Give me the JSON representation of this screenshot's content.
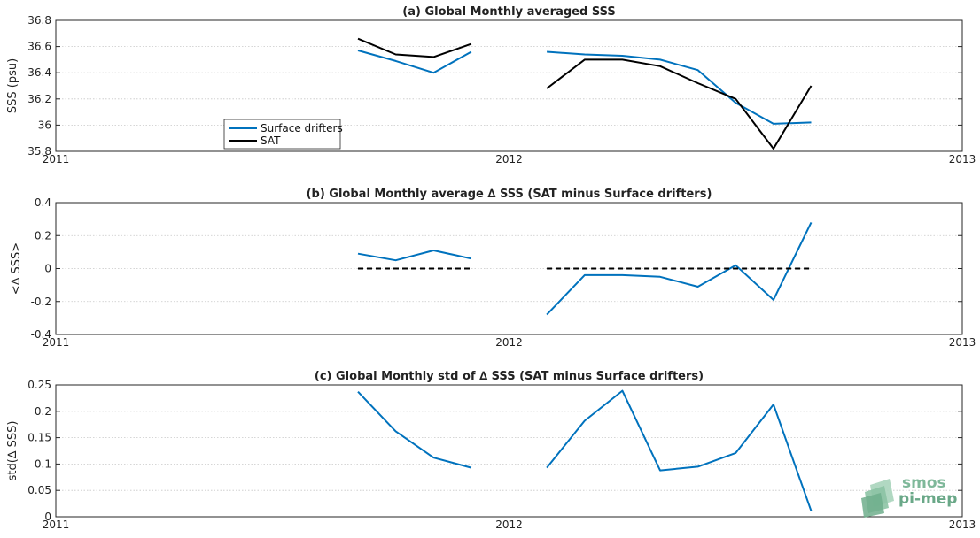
{
  "chart_data": [
    {
      "type": "line",
      "title": "(a) Global Monthly averaged SSS",
      "ylabel": "SSS (psu)",
      "xlabel": "",
      "xlim": [
        "2011",
        "2013"
      ],
      "xticks": [
        "2011",
        "2012",
        "2013"
      ],
      "ylim": [
        35.8,
        36.8
      ],
      "yticks": [
        "35.8",
        "36",
        "36.2",
        "36.4",
        "36.6",
        "36.8"
      ],
      "grid": "horizontal dotted",
      "legend": {
        "position": "lower-left",
        "entries": [
          "Surface drifters",
          "SAT"
        ]
      },
      "series": [
        {
          "name": "Surface drifters",
          "color": "#0072BD",
          "dash": "solid",
          "segments": [
            {
              "x": [
                "2011-09",
                "2011-10",
                "2011-11",
                "2011-12"
              ],
              "y": [
                36.57,
                36.49,
                36.4,
                36.56
              ]
            },
            {
              "x": [
                "2012-02",
                "2012-03",
                "2012-04",
                "2012-05",
                "2012-06",
                "2012-07",
                "2012-08",
                "2012-09"
              ],
              "y": [
                36.56,
                36.54,
                36.53,
                36.5,
                36.42,
                36.17,
                36.01,
                36.02
              ]
            }
          ]
        },
        {
          "name": "SAT",
          "color": "#000000",
          "dash": "solid",
          "segments": [
            {
              "x": [
                "2011-09",
                "2011-10",
                "2011-11",
                "2011-12"
              ],
              "y": [
                36.66,
                36.54,
                36.52,
                36.62
              ]
            },
            {
              "x": [
                "2012-02",
                "2012-03",
                "2012-04",
                "2012-05",
                "2012-06",
                "2012-07",
                "2012-08",
                "2012-09"
              ],
              "y": [
                36.28,
                36.5,
                36.5,
                36.45,
                36.32,
                36.2,
                35.82,
                36.3
              ]
            }
          ]
        }
      ]
    },
    {
      "type": "line",
      "title": "(b) Global Monthly average ∆ SSS (SAT minus Surface drifters)",
      "ylabel": "<∆ SSS>",
      "xlabel": "",
      "xlim": [
        "2011",
        "2013"
      ],
      "xticks": [
        "2011",
        "2012",
        "2013"
      ],
      "ylim": [
        -0.4,
        0.4
      ],
      "yticks": [
        "-0.4",
        "-0.2",
        "0",
        "0.2",
        "0.4"
      ],
      "grid": "horizontal dotted",
      "series": [
        {
          "color": "#0072BD",
          "dash": "solid",
          "segments": [
            {
              "x": [
                "2011-09",
                "2011-10",
                "2011-11",
                "2011-12"
              ],
              "y": [
                0.09,
                0.05,
                0.11,
                0.06
              ]
            },
            {
              "x": [
                "2012-02",
                "2012-03",
                "2012-04",
                "2012-05",
                "2012-06",
                "2012-07",
                "2012-08",
                "2012-09"
              ],
              "y": [
                -0.28,
                -0.04,
                -0.04,
                -0.05,
                -0.11,
                0.02,
                -0.19,
                0.28
              ]
            }
          ]
        },
        {
          "color": "#000000",
          "dash": "dashed",
          "segments": [
            {
              "x": [
                "2011-09",
                "2011-12"
              ],
              "y": [
                0,
                0
              ]
            },
            {
              "x": [
                "2012-02",
                "2012-09"
              ],
              "y": [
                0,
                0
              ]
            }
          ]
        }
      ]
    },
    {
      "type": "line",
      "title": "(c) Global Monthly std of ∆ SSS (SAT minus Surface drifters)",
      "ylabel": "std(∆ SSS)",
      "xlabel": "",
      "xlim": [
        "2011",
        "2013"
      ],
      "xticks": [
        "2011",
        "2012",
        "2013"
      ],
      "ylim": [
        0,
        0.25
      ],
      "yticks": [
        "0",
        "0.05",
        "0.1",
        "0.15",
        "0.2",
        "0.25"
      ],
      "grid": "horizontal dotted",
      "series": [
        {
          "color": "#0072BD",
          "dash": "solid",
          "segments": [
            {
              "x": [
                "2011-09",
                "2011-10",
                "2011-11",
                "2011-12"
              ],
              "y": [
                0.237,
                0.162,
                0.112,
                0.093
              ]
            },
            {
              "x": [
                "2012-02",
                "2012-03",
                "2012-04",
                "2012-05",
                "2012-06",
                "2012-07",
                "2012-08",
                "2012-09"
              ],
              "y": [
                0.093,
                0.182,
                0.239,
                0.088,
                0.095,
                0.121,
                0.213,
                0.011
              ]
            }
          ]
        }
      ]
    }
  ],
  "logo": {
    "line1": "smos",
    "line2": "pi-mep",
    "color": "#7fb89a"
  }
}
